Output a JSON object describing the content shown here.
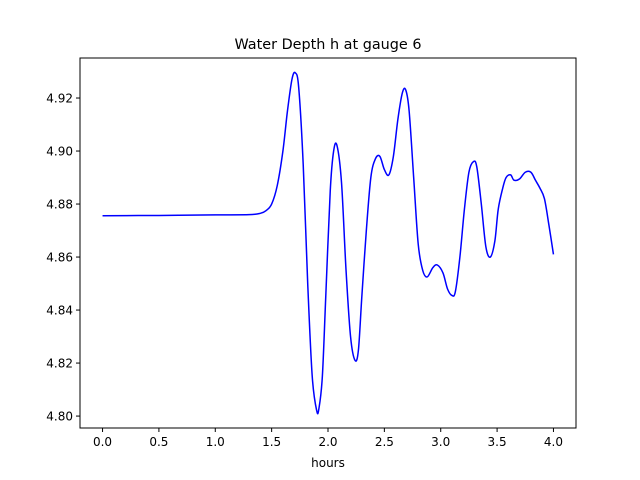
{
  "chart_data": {
    "type": "line",
    "title": "Water Depth h at gauge 6",
    "xlabel": "hours",
    "ylabel": "",
    "xlim": [
      -0.2,
      4.2
    ],
    "ylim": [
      4.7955,
      4.9351
    ],
    "grid": false,
    "legend": "none",
    "x_ticks": [
      0.0,
      0.5,
      1.0,
      1.5,
      2.0,
      2.5,
      3.0,
      3.5,
      4.0
    ],
    "x_tick_labels": [
      "0.0",
      "0.5",
      "1.0",
      "1.5",
      "2.0",
      "2.5",
      "3.0",
      "3.5",
      "4.0"
    ],
    "y_ticks": [
      4.8,
      4.82,
      4.84,
      4.86,
      4.88,
      4.9,
      4.92
    ],
    "y_tick_labels": [
      "4.80",
      "4.82",
      "4.84",
      "4.86",
      "4.88",
      "4.90",
      "4.92"
    ],
    "series": [
      {
        "color": "#0000ff",
        "x": [
          0.0,
          0.5,
          1.0,
          1.3,
          1.4,
          1.45,
          1.5,
          1.55,
          1.6,
          1.64,
          1.68,
          1.71,
          1.74,
          1.78,
          1.82,
          1.86,
          1.9,
          1.92,
          1.95,
          1.98,
          2.02,
          2.05,
          2.08,
          2.12,
          2.16,
          2.2,
          2.24,
          2.27,
          2.3,
          2.34,
          2.38,
          2.42,
          2.46,
          2.5,
          2.54,
          2.58,
          2.62,
          2.66,
          2.69,
          2.72,
          2.76,
          2.8,
          2.84,
          2.88,
          2.93,
          2.97,
          3.02,
          3.06,
          3.1,
          3.13,
          3.17,
          3.21,
          3.25,
          3.29,
          3.32,
          3.36,
          3.4,
          3.44,
          3.48,
          3.51,
          3.55,
          3.58,
          3.62,
          3.65,
          3.7,
          3.75,
          3.8,
          3.84,
          3.88,
          3.92,
          3.96,
          4.0
        ],
        "y": [
          4.8756,
          4.8757,
          4.8759,
          4.876,
          4.8765,
          4.8775,
          4.88,
          4.887,
          4.9,
          4.915,
          4.927,
          4.9295,
          4.924,
          4.895,
          4.85,
          4.815,
          4.802,
          4.803,
          4.815,
          4.845,
          4.885,
          4.9,
          4.902,
          4.888,
          4.855,
          4.83,
          4.821,
          4.825,
          4.845,
          4.87,
          4.89,
          4.897,
          4.898,
          4.893,
          4.891,
          4.898,
          4.912,
          4.922,
          4.923,
          4.915,
          4.89,
          4.865,
          4.855,
          4.8525,
          4.856,
          4.857,
          4.854,
          4.848,
          4.8455,
          4.847,
          4.86,
          4.878,
          4.892,
          4.896,
          4.894,
          4.88,
          4.864,
          4.86,
          4.866,
          4.878,
          4.886,
          4.89,
          4.891,
          4.889,
          4.8895,
          4.892,
          4.892,
          4.889,
          4.886,
          4.882,
          4.872,
          4.861
        ]
      }
    ]
  }
}
